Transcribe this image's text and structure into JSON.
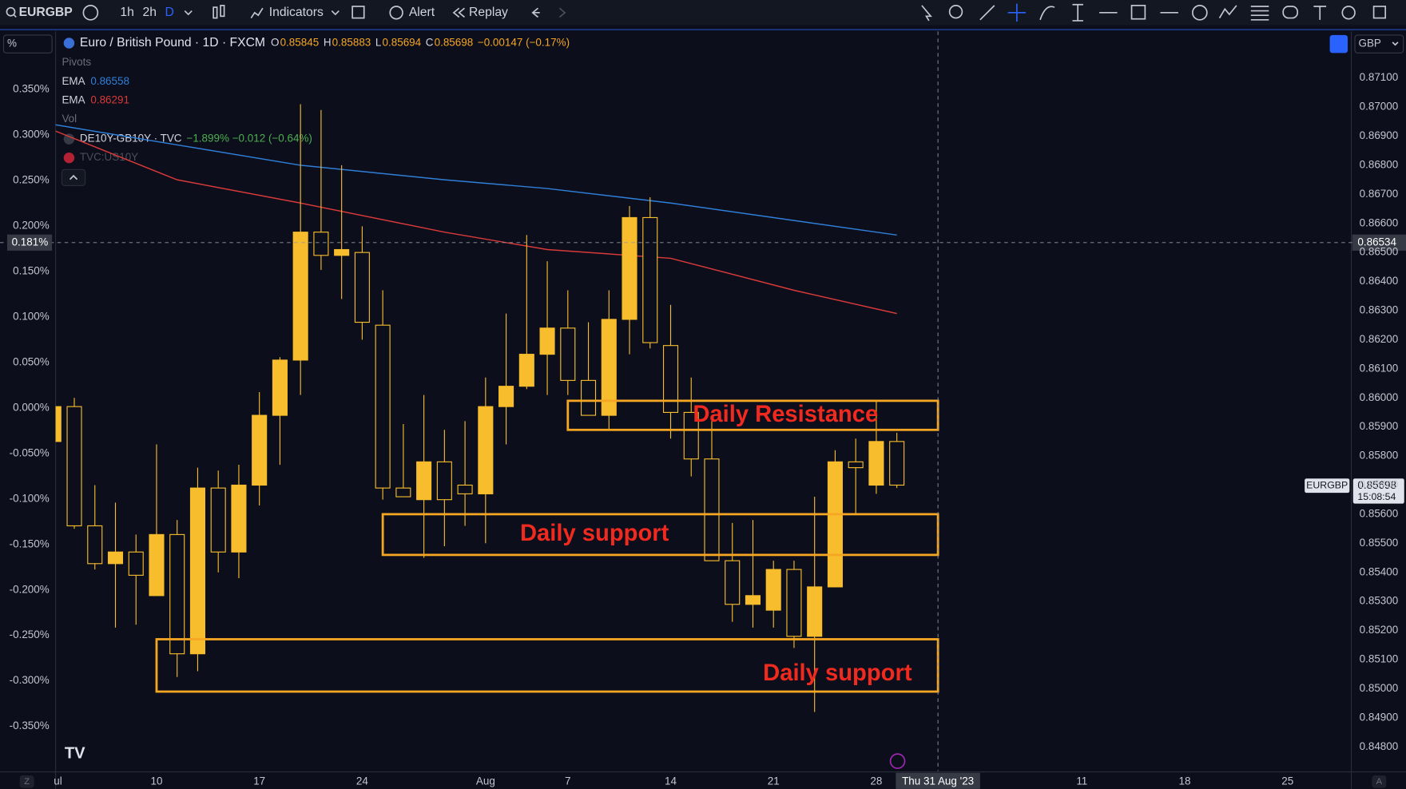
{
  "toolbar": {
    "symbol": "EURGBP",
    "intervals": [
      "1h",
      "2h",
      "D"
    ],
    "indicators": "Indicators",
    "alert": "Alert",
    "replay": "Replay"
  },
  "legend": {
    "title": "Euro / British Pound · 1D · FXCM",
    "ohlc": [
      [
        "O",
        "0.85845"
      ],
      [
        "H",
        "0.85883"
      ],
      [
        "L",
        "0.85694"
      ],
      [
        "C",
        "0.85698"
      ]
    ],
    "change": "−0.00147 (−0.17%)",
    "pivots": "Pivots",
    "ema_values": [
      "0.86558",
      "0.86291"
    ],
    "vol": "Vol",
    "compare1": "DE10Y-GB10Y · TVC",
    "compare1_values": "−1.899%  −0.012 (−0.64%)",
    "compare2": "TVC:US10Y"
  },
  "scale_mode": "%",
  "currency": "GBP",
  "price_label": {
    "symbol": "EURGBP",
    "price": 0.85698,
    "countdown": "15:08:54"
  },
  "crosshair": {
    "x": {
      "value": 43,
      "label": "Thu 31 Aug '23"
    },
    "price": 0.86534,
    "y2_label": "0.181%"
  },
  "bottom": {
    "left": "Z",
    "right": "A"
  },
  "chart_data": {
    "type": "candlestick",
    "color": "#f7bd2c",
    "hollow_down": true,
    "x": [
      0,
      1,
      2,
      3,
      4,
      5,
      6,
      7,
      8,
      9,
      10,
      11,
      12,
      13,
      14,
      15,
      16,
      17,
      18,
      19,
      20,
      21,
      22,
      23,
      24,
      25,
      26,
      27,
      28,
      29,
      30,
      31,
      32,
      33,
      34,
      35,
      36,
      37,
      38,
      39,
      40,
      41
    ],
    "open": [
      0.8585,
      0.8597,
      0.8556,
      0.8543,
      0.8547,
      0.8532,
      0.8553,
      0.8512,
      0.8569,
      0.8547,
      0.857,
      0.8594,
      0.8613,
      0.8657,
      0.8649,
      0.865,
      0.8625,
      0.8569,
      0.8565,
      0.8578,
      0.857,
      0.8567,
      0.8597,
      0.8604,
      0.8615,
      0.8624,
      0.8606,
      0.8594,
      0.8627,
      0.8662,
      0.8618,
      0.8595,
      0.8579,
      0.8544,
      0.8529,
      0.8527,
      0.8541,
      0.8518,
      0.8535,
      0.8578,
      0.857,
      0.8585
    ],
    "high": [
      0.8598,
      0.86,
      0.857,
      0.8564,
      0.8553,
      0.8584,
      0.8558,
      0.8576,
      0.8575,
      0.8577,
      0.8602,
      0.8614,
      0.8701,
      0.8699,
      0.868,
      0.8659,
      0.8637,
      0.8591,
      0.8601,
      0.8589,
      0.8592,
      0.8607,
      0.8629,
      0.8656,
      0.8647,
      0.8637,
      0.8626,
      0.8637,
      0.8666,
      0.8669,
      0.8632,
      0.8607,
      0.8592,
      0.8557,
      0.8558,
      0.8544,
      0.8544,
      0.8566,
      0.8582,
      0.8586,
      0.8599,
      0.8588
    ],
    "low": [
      0.8584,
      0.8555,
      0.8541,
      0.8521,
      0.8522,
      0.8532,
      0.8504,
      0.8506,
      0.854,
      0.8538,
      0.8563,
      0.8577,
      0.8601,
      0.8644,
      0.8634,
      0.862,
      0.8565,
      0.8566,
      0.8545,
      0.8549,
      0.8556,
      0.855,
      0.8584,
      0.8603,
      0.8601,
      0.8601,
      0.8594,
      0.8589,
      0.8615,
      0.8617,
      0.8586,
      0.8573,
      0.8544,
      0.8523,
      0.8521,
      0.8521,
      0.8514,
      0.8492,
      0.8535,
      0.856,
      0.8567,
      0.8569
    ],
    "close": [
      0.8597,
      0.8556,
      0.8543,
      0.8547,
      0.8539,
      0.8553,
      0.8512,
      0.8569,
      0.8547,
      0.857,
      0.8594,
      0.8613,
      0.8657,
      0.8649,
      0.8651,
      0.8626,
      0.8569,
      0.8566,
      0.8578,
      0.8565,
      0.8567,
      0.8597,
      0.8604,
      0.8615,
      0.8624,
      0.8606,
      0.8594,
      0.8627,
      0.8662,
      0.8619,
      0.8595,
      0.8579,
      0.8544,
      0.8529,
      0.8532,
      0.8541,
      0.8518,
      0.8535,
      0.8578,
      0.8576,
      0.8585,
      0.857
    ],
    "lines": [
      {
        "name": "EMA",
        "color": "#2f7fd8",
        "x": [
          0,
          6,
          12,
          19,
          24,
          30,
          36,
          41
        ],
        "values": [
          0.8694,
          0.8687,
          0.868,
          0.8675,
          0.8672,
          0.8667,
          0.8661,
          0.8656
        ]
      },
      {
        "name": "EMA",
        "color": "#d83a3a",
        "x": [
          0,
          6,
          12,
          19,
          24,
          30,
          36,
          41
        ],
        "values": [
          0.8692,
          0.8675,
          0.8667,
          0.8657,
          0.8651,
          0.8648,
          0.8637,
          0.8629
        ]
      }
    ],
    "zones": [
      {
        "label": "Daily Resistance",
        "x": [
          25,
          43
        ],
        "y": [
          0.8599,
          0.8589
        ]
      },
      {
        "label": "Daily support",
        "x": [
          16,
          43
        ],
        "y": [
          0.856,
          0.8546
        ]
      },
      {
        "label": "Daily support",
        "x": [
          5,
          43
        ],
        "y": [
          0.8517,
          0.8499
        ]
      }
    ],
    "zone_color": "#f5a623",
    "label_color": "#f02a1e",
    "xlim": [
      0.09,
      63.1
    ],
    "xticks": [
      {
        "value": 0,
        "label": "ul"
      },
      {
        "value": 5,
        "label": "10"
      },
      {
        "value": 10,
        "label": "17"
      },
      {
        "value": 15,
        "label": "24"
      },
      {
        "value": 21,
        "label": "Aug"
      },
      {
        "value": 25,
        "label": "7"
      },
      {
        "value": 30,
        "label": "14"
      },
      {
        "value": 35,
        "label": "21"
      },
      {
        "value": 40,
        "label": "28"
      },
      {
        "value": 50,
        "label": "11"
      },
      {
        "value": 55,
        "label": "18"
      },
      {
        "value": 60,
        "label": "25"
      }
    ],
    "ylim": [
      0.84717,
      0.8726
    ],
    "yticks": [
      {
        "value": 0.848,
        "label": "0.84800"
      },
      {
        "value": 0.849,
        "label": "0.84900"
      },
      {
        "value": 0.85,
        "label": "0.85000"
      },
      {
        "value": 0.851,
        "label": "0.85100"
      },
      {
        "value": 0.852,
        "label": "0.85200"
      },
      {
        "value": 0.853,
        "label": "0.85300"
      },
      {
        "value": 0.854,
        "label": "0.85400"
      },
      {
        "value": 0.855,
        "label": "0.85500"
      },
      {
        "value": 0.856,
        "label": "0.85600"
      },
      {
        "value": 0.857,
        "label": "0.85700"
      },
      {
        "value": 0.858,
        "label": "0.85800"
      },
      {
        "value": 0.859,
        "label": "0.85900"
      },
      {
        "value": 0.86,
        "label": "0.86000"
      },
      {
        "value": 0.861,
        "label": "0.86100"
      },
      {
        "value": 0.862,
        "label": "0.86200"
      },
      {
        "value": 0.863,
        "label": "0.86300"
      },
      {
        "value": 0.864,
        "label": "0.86400"
      },
      {
        "value": 0.865,
        "label": "0.86500"
      },
      {
        "value": 0.866,
        "label": "0.86600"
      },
      {
        "value": 0.867,
        "label": "0.86700"
      },
      {
        "value": 0.868,
        "label": "0.86800"
      },
      {
        "value": 0.869,
        "label": "0.86900"
      },
      {
        "value": 0.87,
        "label": "0.87000"
      },
      {
        "value": 0.871,
        "label": "0.87100"
      }
    ],
    "y2lim": [
      -0.399,
      0.4138
    ],
    "y2ticks": [
      {
        "value": -0.35,
        "label": "-0.350%"
      },
      {
        "value": -0.3,
        "label": "-0.300%"
      },
      {
        "value": -0.25,
        "label": "-0.250%"
      },
      {
        "value": -0.2,
        "label": "-0.200%"
      },
      {
        "value": -0.15,
        "label": "-0.150%"
      },
      {
        "value": -0.1,
        "label": "-0.100%"
      },
      {
        "value": -0.05,
        "label": "-0.050%"
      },
      {
        "value": 0,
        "label": "0.000%"
      },
      {
        "value": 0.05,
        "label": "0.050%"
      },
      {
        "value": 0.1,
        "label": "0.100%"
      },
      {
        "value": 0.15,
        "label": "0.150%"
      },
      {
        "value": 0.2,
        "label": "0.200%"
      },
      {
        "value": 0.25,
        "label": "0.250%"
      },
      {
        "value": 0.3,
        "label": "0.300%"
      },
      {
        "value": 0.35,
        "label": "0.350%"
      }
    ]
  }
}
